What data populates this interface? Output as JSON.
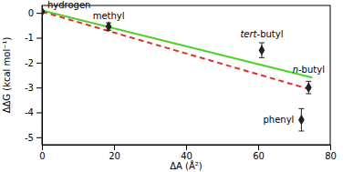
{
  "chart_data": {
    "type": "scatter",
    "x_label": "ΔA (Å²)",
    "y_label": "ΔΔG (kcal mol⁻¹)",
    "xlim": [
      0,
      80
    ],
    "xticks": [
      0,
      20,
      40,
      60,
      80
    ],
    "ylim": [
      -5.3,
      0.3
    ],
    "yticks": [
      -5,
      -4,
      -3,
      -2,
      -1,
      0
    ],
    "series": [
      {
        "type": "line",
        "color": "#4cd12a",
        "line_style": "solid",
        "x": [
          0,
          75
        ],
        "values": [
          0.1,
          -2.6
        ]
      },
      {
        "type": "line",
        "color": "#e0302a",
        "line_style": "dashed",
        "x": [
          0,
          75
        ],
        "values": [
          0.05,
          -3.1
        ]
      },
      {
        "type": "scatter",
        "color": "#222222",
        "marker": "diamond",
        "x": [
          0,
          18.5,
          61,
          74,
          72
        ],
        "values": [
          0.05,
          -0.55,
          -1.5,
          -3.0,
          -4.3
        ],
        "errors": [
          0.05,
          0.15,
          0.3,
          0.25,
          0.45
        ],
        "labels": [
          "hydrogen",
          "methyl",
          "tert-butyl",
          "n-butyl",
          "phenyl"
        ]
      }
    ]
  }
}
